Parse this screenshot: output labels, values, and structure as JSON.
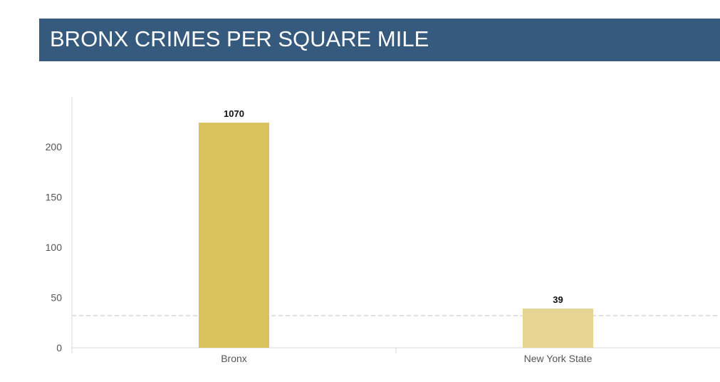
{
  "title": "BRONX CRIMES PER SQUARE MILE",
  "colors": {
    "header_bg": "#365a7e",
    "bar_primary": "#d8c25c",
    "bar_secondary": "#e6d592",
    "reference_line": "#cfcfcf"
  },
  "chart_data": {
    "type": "bar",
    "title": "BRONX CRIMES PER SQUARE MILE",
    "categories": [
      "Bronx",
      "New York State"
    ],
    "values": [
      1070,
      39
    ],
    "data_labels": [
      "1070",
      "39"
    ],
    "displayed_heights": [
      224,
      39
    ],
    "ylim": [
      0,
      250
    ],
    "yticks": [
      0,
      50,
      100,
      150,
      200
    ],
    "ytick_labels": [
      "0",
      "50",
      "100",
      "150",
      "200"
    ],
    "reference_line_value": 32,
    "grid": false,
    "legend": "none",
    "xlabel": "",
    "ylabel": ""
  }
}
